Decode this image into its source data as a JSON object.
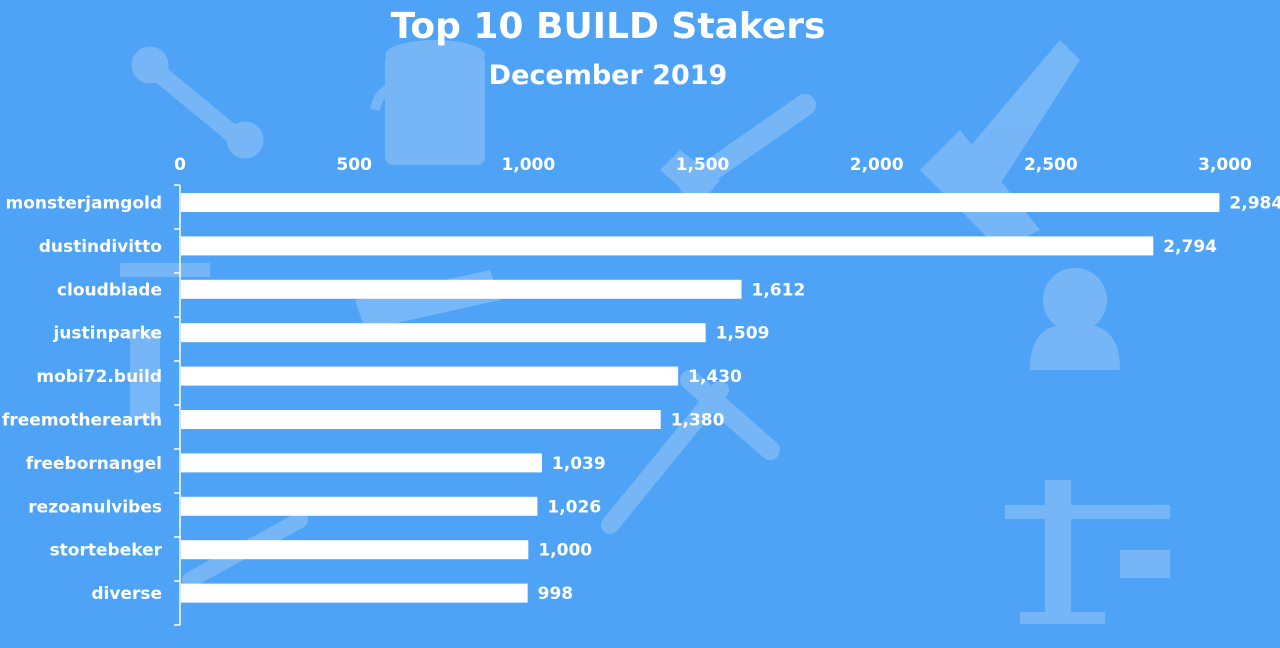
{
  "colors": {
    "background": "#4ea3f7",
    "bar": "#ffffff",
    "text": "#ffffff",
    "watermark": "#7bb9f6"
  },
  "background_icons": [
    "wrench-icon",
    "paint-bucket-icon",
    "paintbrush-icon",
    "saw-icon",
    "square-ruler-icon",
    "person-icon",
    "crane-icon",
    "screwdriver-icon",
    "hammer-icon",
    "pipe-wrench-icon"
  ],
  "chart_data": {
    "type": "bar",
    "orientation": "horizontal",
    "title": "Top 10 BUILD Stakers",
    "subtitle": "December 2019",
    "categories": [
      "monsterjamgold",
      "dustindivitto",
      "cloudblade",
      "justinparke",
      "mobi72.build",
      "freemotherearth",
      "freebornangel",
      "rezoanulvibes",
      "stortebeker",
      "diverse"
    ],
    "values": [
      2984,
      2794,
      1612,
      1509,
      1430,
      1380,
      1039,
      1026,
      1000,
      998
    ],
    "value_labels": [
      "2,984",
      "2,794",
      "1,612",
      "1,509",
      "1,430",
      "1,380",
      "1,039",
      "1,026",
      "1,000",
      "998"
    ],
    "xlim": [
      0,
      3000
    ],
    "x_ticks": [
      0,
      500,
      1000,
      1500,
      2000,
      2500,
      3000
    ],
    "x_tick_labels": [
      "0",
      "500",
      "1,000",
      "1,500",
      "2,000",
      "2,500",
      "3,000"
    ],
    "x_axis_position": "top",
    "grid": false,
    "legend": "none"
  }
}
